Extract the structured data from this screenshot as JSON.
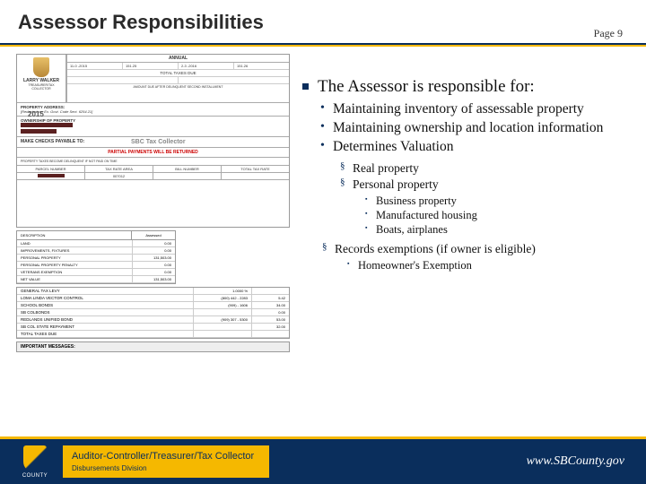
{
  "header": {
    "title": "Assessor Responsibilities",
    "page": "Page 9"
  },
  "bill": {
    "county_line1": "LARRY WALKER",
    "county_line2": "TREASURER/TAX COLLECTOR",
    "year": "2015",
    "annual": "ANNUAL",
    "dates": {
      "d1": "11-0 -2015",
      "d2": "151.25",
      "d3": "2-3 -2016",
      "d4": "151.26"
    },
    "total_due": "TOTAL TAXES DUE",
    "amount_after": "AMOUNT DUE AFTER DELINQUENT SECOND INSTALLMENT",
    "prop_addr": "PROPERTY ADDRESS:",
    "prop_val": "[Redacted per Ex. Govt. Code Sect. 6254.21]",
    "owner": "OWNERSHIP OF PROPERTY",
    "payto": "MAKE CHECKS PAYABLE TO:",
    "sbc": "SBC Tax Collector",
    "partial": "PARTIAL PAYMENTS WILL BE RETURNED",
    "cols": [
      "PARCEL NUMBER",
      "TAX RATE AREA",
      "BILL NUMBER",
      "TOTAL TAX RATE"
    ]
  },
  "table1": {
    "h1": "DESCRIPTION",
    "h2": "Assessed",
    "rows": [
      {
        "l": "LAND",
        "v": "0.00"
      },
      {
        "l": "IMPROVEMENTS, FIXTURES",
        "v": "0.00"
      },
      {
        "l": "PERSONAL PROPERTY",
        "v": "131,503.00"
      },
      {
        "l": "PERSONAL PROPERTY PENALTY",
        "v": "0.00"
      },
      {
        "l": "VETERANS EXEMPTION",
        "v": "0.00"
      },
      {
        "l": "NET VALUE",
        "v": "131,503.00"
      }
    ]
  },
  "table2": {
    "rows": [
      {
        "l": "GENERAL TAX LEVY",
        "p": "1.0000 %",
        "v": ""
      },
      {
        "l": "LOMA LINDA VECTOR CONTROL",
        "p": "(800) 442 - 2283",
        "v": "5.42"
      },
      {
        "l": "SCHOOL BONDS",
        "p": "(909)   - 1606",
        "v": "34.00"
      },
      {
        "l": "SB COLBONDS",
        "p": "",
        "v": "0.00"
      },
      {
        "l": "REDLANDS UNIFIED BOND",
        "p": "(909) 307 - 5300",
        "v": "53.00"
      },
      {
        "l": "SB COL STATE REPAYMENT",
        "p": "",
        "v": "32.00"
      },
      {
        "l": "TOTAL TAXES DUE",
        "p": "",
        "v": ""
      }
    ]
  },
  "important": "IMPORTANT MESSAGES:",
  "r": {
    "main": "The Assessor is responsible for:",
    "b1": "Maintaining inventory of assessable property",
    "b2": "Maintaining ownership and location information",
    "b3": "Determines Valuation",
    "s1": "Real property",
    "s2": "Personal property",
    "ss1": "Business property",
    "ss2": "Manufactured housing",
    "ss3": "Boats, airplanes",
    "b4": "Records exemptions (if owner is eligible)",
    "s3": "Homeowner's Exemption"
  },
  "footer": {
    "county": "COUNTY",
    "title": "Auditor-Controller/Treasurer/Tax Collector",
    "sub": "Disbursements Division",
    "url": "www.SBCounty.gov"
  }
}
